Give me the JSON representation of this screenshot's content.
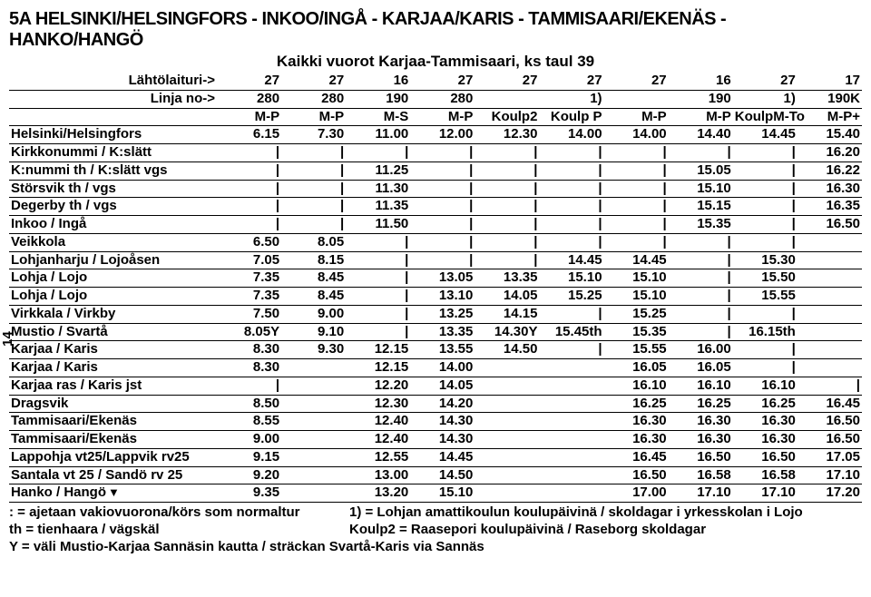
{
  "title": "5A  HELSINKI/HELSINGFORS - INKOO/INGÅ - KARJAA/KARIS - TAMMISAARI/EKENÄS - HANKO/HANGÖ",
  "subtitle": "Kaikki vuorot Karjaa-Tammisaari, ks taul 39",
  "side_page": "14",
  "headers": {
    "row1": {
      "label": "Lähtölaituri->",
      "cols": [
        "27",
        "27",
        "16",
        "27",
        "27",
        "27",
        "27",
        "16",
        "27",
        "17"
      ]
    },
    "row2": {
      "label": "Linja no->",
      "cols": [
        "280",
        "280",
        "190",
        "280",
        "",
        "1)",
        "",
        "190",
        "1)",
        "190K"
      ]
    },
    "row3": {
      "label": "",
      "cols": [
        "M-P",
        "M-P",
        "M-S",
        "M-P",
        "Koulp2",
        "Koulp P",
        "M-P",
        "M-P",
        "KoulpM-To",
        "M-P+"
      ]
    }
  },
  "rows": [
    {
      "stop": "Helsinki/Helsingfors",
      "times": [
        "6.15",
        "7.30",
        "11.00",
        "12.00",
        "12.30",
        "14.00",
        "14.00",
        "14.40",
        "14.45",
        "15.40"
      ]
    },
    {
      "stop": "Kirkkonummi / K:slätt",
      "times": [
        "|",
        "|",
        "|",
        "|",
        "|",
        "|",
        "|",
        "|",
        "|",
        "16.20"
      ]
    },
    {
      "stop": "K:nummi th / K:slätt vgs",
      "times": [
        "|",
        "|",
        "11.25",
        "|",
        "|",
        "|",
        "|",
        "15.05",
        "|",
        "16.22"
      ]
    },
    {
      "stop": "Störsvik th / vgs",
      "times": [
        "|",
        "|",
        "11.30",
        "|",
        "|",
        "|",
        "|",
        "15.10",
        "|",
        "16.30"
      ]
    },
    {
      "stop": "Degerby th / vgs",
      "times": [
        "|",
        "|",
        "11.35",
        "|",
        "|",
        "|",
        "|",
        "15.15",
        "|",
        "16.35"
      ]
    },
    {
      "stop": "Inkoo / Ingå",
      "times": [
        "|",
        "|",
        "11.50",
        "|",
        "|",
        "|",
        "|",
        "15.35",
        "|",
        "16.50"
      ]
    },
    {
      "stop": "Veikkola",
      "times": [
        "6.50",
        "8.05",
        "|",
        "|",
        "|",
        "|",
        "|",
        "|",
        "|",
        ""
      ]
    },
    {
      "stop": "Lohjanharju / Lojoåsen",
      "times": [
        "7.05",
        "8.15",
        "|",
        "|",
        "|",
        "14.45",
        "14.45",
        "|",
        "15.30",
        ""
      ]
    },
    {
      "stop": "Lohja / Lojo",
      "times": [
        "7.35",
        "8.45",
        "|",
        "13.05",
        "13.35",
        "15.10",
        "15.10",
        "|",
        "15.50",
        ""
      ]
    },
    {
      "stop": "Lohja / Lojo",
      "times": [
        "7.35",
        "8.45",
        "|",
        "13.10",
        "14.05",
        "15.25",
        "15.10",
        "|",
        "15.55",
        ""
      ]
    },
    {
      "stop": "Virkkala / Virkby",
      "times": [
        "7.50",
        "9.00",
        "|",
        "13.25",
        "14.15",
        "|",
        "15.25",
        "|",
        "|",
        ""
      ]
    },
    {
      "stop": "Mustio / Svartå",
      "times": [
        "8.05Y",
        "9.10",
        "|",
        "13.35",
        "14.30Y",
        "15.45th",
        "15.35",
        "|",
        "16.15th",
        ""
      ]
    },
    {
      "stop": "Karjaa / Karis",
      "times": [
        "8.30",
        "9.30",
        "12.15",
        "13.55",
        "14.50",
        "|",
        "15.55",
        "16.00",
        "|",
        ""
      ]
    },
    {
      "stop": "Karjaa / Karis",
      "times": [
        "8.30",
        "",
        "12.15",
        "14.00",
        "",
        "",
        "16.05",
        "16.05",
        "|",
        ""
      ]
    },
    {
      "stop": "Karjaa ras / Karis jst",
      "times": [
        "|",
        "",
        "12.20",
        "14.05",
        "",
        "",
        "16.10",
        "16.10",
        "16.10",
        "|"
      ]
    },
    {
      "stop": "Dragsvik",
      "times": [
        "8.50",
        "",
        "12.30",
        "14.20",
        "",
        "",
        "16.25",
        "16.25",
        "16.25",
        "16.45"
      ]
    },
    {
      "stop": "Tammisaari/Ekenäs",
      "times": [
        "8.55",
        "",
        "12.40",
        "14.30",
        "",
        "",
        "16.30",
        "16.30",
        "16.30",
        "16.50"
      ]
    },
    {
      "stop": "Tammisaari/Ekenäs",
      "times": [
        "9.00",
        "",
        "12.40",
        "14.30",
        "",
        "",
        "16.30",
        "16.30",
        "16.30",
        "16.50"
      ]
    },
    {
      "stop": "Lappohja vt25/Lappvik rv25",
      "times": [
        "9.15",
        "",
        "12.55",
        "14.45",
        "",
        "",
        "16.45",
        "16.50",
        "16.50",
        "17.05"
      ]
    },
    {
      "stop": "Santala vt 25 / Sandö rv 25",
      "times": [
        "9.20",
        "",
        "13.00",
        "14.50",
        "",
        "",
        "16.50",
        "16.58",
        "16.58",
        "17.10"
      ]
    },
    {
      "stop": "Hanko / Hangö",
      "times": [
        "9.35",
        "",
        "13.20",
        "15.10",
        "",
        "",
        "17.00",
        "17.10",
        "17.10",
        "17.20"
      ],
      "last": true
    }
  ],
  "footnotes": {
    "l1": ": = ajetaan vakiovuorona/körs som normaltur",
    "r1": "1) = Lohjan amattikoulun koulupäivinä / skoldagar i yrkesskolan i Lojo",
    "l2": "th = tienhaara / vägskäl",
    "r2": "Koulp2 = Raasepori koulupäivinä / Raseborg skoldagar",
    "f3": "Y = väli Mustio-Karjaa Sannäsin kautta / sträckan Svartå-Karis via Sannäs"
  }
}
